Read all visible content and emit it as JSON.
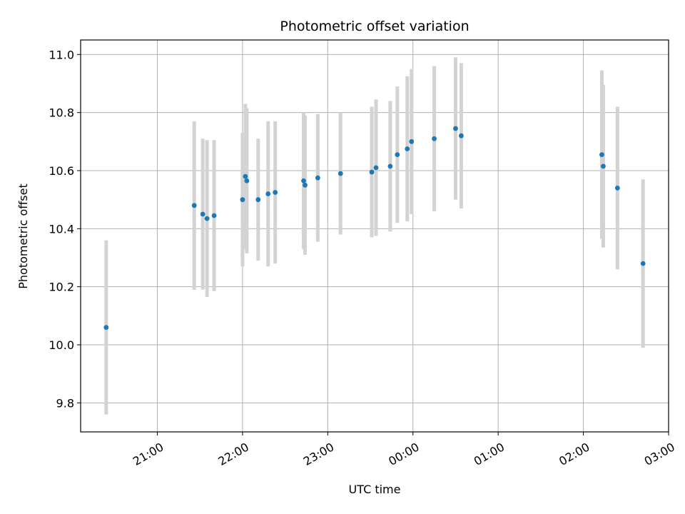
{
  "chart_data": {
    "type": "scatter",
    "title": "Photometric offset variation",
    "xlabel": "UTC time",
    "ylabel": "Photometric offset",
    "grid": true,
    "x_unit": "UTC hh:mm",
    "xlim": [
      "20:06",
      "03:00"
    ],
    "ylim": [
      9.7,
      11.05
    ],
    "x_ticks": [
      "21:00",
      "22:00",
      "23:00",
      "00:00",
      "01:00",
      "02:00",
      "03:00"
    ],
    "y_ticks": [
      9.8,
      10.0,
      10.2,
      10.4,
      10.6,
      10.8,
      11.0
    ],
    "colors": {
      "point": "#1f77b4",
      "errorbar": "#d3d3d3",
      "grid": "#b0b0b0"
    },
    "points": [
      {
        "x": "20:24",
        "y": 10.06,
        "err": 0.3
      },
      {
        "x": "21:26",
        "y": 10.48,
        "err": 0.29
      },
      {
        "x": "21:32",
        "y": 10.45,
        "err": 0.26
      },
      {
        "x": "21:35",
        "y": 10.435,
        "err": 0.27
      },
      {
        "x": "21:40",
        "y": 10.445,
        "err": 0.26
      },
      {
        "x": "22:00",
        "y": 10.5,
        "err": 0.23
      },
      {
        "x": "22:02",
        "y": 10.58,
        "err": 0.25
      },
      {
        "x": "22:03",
        "y": 10.565,
        "err": 0.25
      },
      {
        "x": "22:11",
        "y": 10.5,
        "err": 0.21
      },
      {
        "x": "22:18",
        "y": 10.52,
        "err": 0.25
      },
      {
        "x": "22:23",
        "y": 10.525,
        "err": 0.245
      },
      {
        "x": "22:43",
        "y": 10.565,
        "err": 0.235
      },
      {
        "x": "22:44",
        "y": 10.55,
        "err": 0.24
      },
      {
        "x": "22:53",
        "y": 10.575,
        "err": 0.22
      },
      {
        "x": "23:09",
        "y": 10.59,
        "err": 0.21
      },
      {
        "x": "23:31",
        "y": 10.595,
        "err": 0.225
      },
      {
        "x": "23:34",
        "y": 10.61,
        "err": 0.235
      },
      {
        "x": "23:44",
        "y": 10.615,
        "err": 0.225
      },
      {
        "x": "23:49",
        "y": 10.655,
        "err": 0.235
      },
      {
        "x": "23:56",
        "y": 10.675,
        "err": 0.25
      },
      {
        "x": "23:59",
        "y": 10.7,
        "err": 0.25
      },
      {
        "x": "00:15",
        "y": 10.71,
        "err": 0.25
      },
      {
        "x": "00:30",
        "y": 10.745,
        "err": 0.245
      },
      {
        "x": "00:34",
        "y": 10.72,
        "err": 0.25
      },
      {
        "x": "02:13",
        "y": 10.655,
        "err": 0.29
      },
      {
        "x": "02:14",
        "y": 10.615,
        "err": 0.28
      },
      {
        "x": "02:24",
        "y": 10.54,
        "err": 0.28
      },
      {
        "x": "02:42",
        "y": 10.28,
        "err": 0.29
      }
    ]
  }
}
